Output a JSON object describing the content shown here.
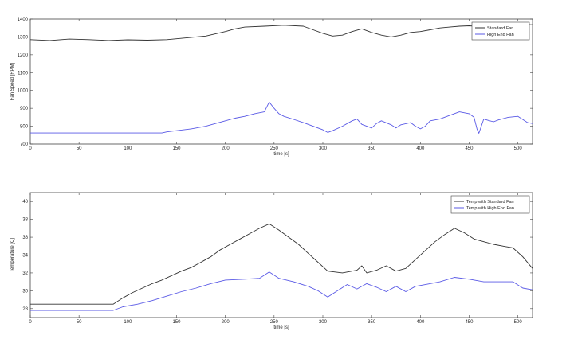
{
  "chart_data": [
    {
      "type": "line",
      "xlabel": "time [s]",
      "ylabel": "Fan Speed [RPM]",
      "xlim": [
        0,
        515
      ],
      "ylim": [
        700,
        1400
      ],
      "xticks": [
        0,
        50,
        100,
        150,
        200,
        250,
        300,
        350,
        400,
        450,
        500
      ],
      "yticks": [
        700,
        800,
        900,
        1000,
        1100,
        1200,
        1300,
        1400
      ],
      "xtick_labels": [
        "0",
        "50",
        "100",
        "150",
        "200",
        "250",
        "300",
        "350",
        "400",
        "450",
        "500"
      ],
      "ytick_labels": [
        "700",
        "800",
        "900",
        "1000",
        "1100",
        "1200",
        "1300",
        "1400"
      ],
      "legend_position": "top-right",
      "series": [
        {
          "name": "Standard Fan",
          "color": "#333333",
          "points": [
            [
              0,
              1285
            ],
            [
              20,
              1280
            ],
            [
              40,
              1288
            ],
            [
              60,
              1285
            ],
            [
              80,
              1280
            ],
            [
              100,
              1284
            ],
            [
              120,
              1282
            ],
            [
              140,
              1285
            ],
            [
              160,
              1295
            ],
            [
              180,
              1305
            ],
            [
              200,
              1330
            ],
            [
              210,
              1345
            ],
            [
              220,
              1355
            ],
            [
              240,
              1360
            ],
            [
              260,
              1365
            ],
            [
              280,
              1360
            ],
            [
              290,
              1340
            ],
            [
              300,
              1320
            ],
            [
              310,
              1305
            ],
            [
              320,
              1310
            ],
            [
              330,
              1330
            ],
            [
              340,
              1345
            ],
            [
              350,
              1325
            ],
            [
              360,
              1310
            ],
            [
              370,
              1300
            ],
            [
              380,
              1310
            ],
            [
              390,
              1325
            ],
            [
              400,
              1330
            ],
            [
              410,
              1340
            ],
            [
              420,
              1350
            ],
            [
              430,
              1355
            ],
            [
              440,
              1360
            ],
            [
              450,
              1362
            ],
            [
              460,
              1358
            ],
            [
              470,
              1360
            ],
            [
              480,
              1365
            ],
            [
              490,
              1362
            ],
            [
              500,
              1370
            ],
            [
              515,
              1368
            ]
          ]
        },
        {
          "name": "High End Fan",
          "color": "#5a5ae6",
          "points": [
            [
              0,
              762
            ],
            [
              135,
              762
            ],
            [
              140,
              768
            ],
            [
              150,
              775
            ],
            [
              165,
              785
            ],
            [
              180,
              800
            ],
            [
              190,
              815
            ],
            [
              200,
              830
            ],
            [
              210,
              845
            ],
            [
              220,
              855
            ],
            [
              230,
              870
            ],
            [
              240,
              880
            ],
            [
              245,
              935
            ],
            [
              250,
              900
            ],
            [
              255,
              870
            ],
            [
              260,
              855
            ],
            [
              270,
              838
            ],
            [
              280,
              820
            ],
            [
              290,
              800
            ],
            [
              300,
              780
            ],
            [
              305,
              765
            ],
            [
              310,
              775
            ],
            [
              320,
              800
            ],
            [
              330,
              830
            ],
            [
              335,
              840
            ],
            [
              340,
              810
            ],
            [
              350,
              790
            ],
            [
              355,
              815
            ],
            [
              360,
              830
            ],
            [
              370,
              808
            ],
            [
              375,
              790
            ],
            [
              380,
              808
            ],
            [
              390,
              820
            ],
            [
              395,
              800
            ],
            [
              400,
              785
            ],
            [
              405,
              800
            ],
            [
              410,
              830
            ],
            [
              420,
              840
            ],
            [
              430,
              860
            ],
            [
              440,
              880
            ],
            [
              450,
              870
            ],
            [
              455,
              850
            ],
            [
              458,
              785
            ],
            [
              460,
              760
            ],
            [
              465,
              840
            ],
            [
              470,
              832
            ],
            [
              475,
              825
            ],
            [
              480,
              835
            ],
            [
              490,
              850
            ],
            [
              500,
              855
            ],
            [
              510,
              820
            ],
            [
              515,
              815
            ]
          ]
        }
      ]
    },
    {
      "type": "line",
      "xlabel": "time [s]",
      "ylabel": "Temperature [C]",
      "xlim": [
        0,
        515
      ],
      "ylim": [
        27,
        41
      ],
      "xticks": [
        0,
        50,
        100,
        150,
        200,
        250,
        300,
        350,
        400,
        450,
        500
      ],
      "yticks": [
        28,
        30,
        32,
        34,
        36,
        38,
        40
      ],
      "xtick_labels": [
        "0",
        "50",
        "100",
        "150",
        "200",
        "250",
        "300",
        "350",
        "400",
        "450",
        "500"
      ],
      "ytick_labels": [
        "28",
        "30",
        "32",
        "34",
        "36",
        "38",
        "40"
      ],
      "legend_position": "top-right",
      "series": [
        {
          "name": "Temp with Standard Fan",
          "color": "#333333",
          "points": [
            [
              0,
              28.5
            ],
            [
              85,
              28.5
            ],
            [
              95,
              29.2
            ],
            [
              105,
              29.8
            ],
            [
              115,
              30.3
            ],
            [
              125,
              30.8
            ],
            [
              135,
              31.2
            ],
            [
              145,
              31.7
            ],
            [
              155,
              32.2
            ],
            [
              165,
              32.6
            ],
            [
              175,
              33.2
            ],
            [
              185,
              33.8
            ],
            [
              195,
              34.6
            ],
            [
              205,
              35.2
            ],
            [
              215,
              35.8
            ],
            [
              225,
              36.4
            ],
            [
              235,
              37.0
            ],
            [
              245,
              37.5
            ],
            [
              255,
              36.8
            ],
            [
              265,
              36.0
            ],
            [
              275,
              35.2
            ],
            [
              285,
              34.2
            ],
            [
              295,
              33.2
            ],
            [
              305,
              32.2
            ],
            [
              320,
              32.0
            ],
            [
              335,
              32.3
            ],
            [
              340,
              32.8
            ],
            [
              345,
              32.0
            ],
            [
              355,
              32.3
            ],
            [
              365,
              32.8
            ],
            [
              375,
              32.2
            ],
            [
              385,
              32.5
            ],
            [
              395,
              33.5
            ],
            [
              405,
              34.5
            ],
            [
              415,
              35.5
            ],
            [
              425,
              36.3
            ],
            [
              435,
              37.0
            ],
            [
              445,
              36.5
            ],
            [
              455,
              35.8
            ],
            [
              465,
              35.5
            ],
            [
              475,
              35.2
            ],
            [
              485,
              35.0
            ],
            [
              495,
              34.8
            ],
            [
              505,
              33.8
            ],
            [
              515,
              32.5
            ]
          ]
        },
        {
          "name": "Temp with High End Fan",
          "color": "#5a5ae6",
          "points": [
            [
              0,
              27.8
            ],
            [
              85,
              27.8
            ],
            [
              95,
              28.2
            ],
            [
              110,
              28.5
            ],
            [
              125,
              28.9
            ],
            [
              140,
              29.4
            ],
            [
              155,
              29.9
            ],
            [
              170,
              30.3
            ],
            [
              185,
              30.8
            ],
            [
              200,
              31.2
            ],
            [
              220,
              31.3
            ],
            [
              235,
              31.4
            ],
            [
              245,
              32.1
            ],
            [
              255,
              31.4
            ],
            [
              270,
              31.0
            ],
            [
              285,
              30.5
            ],
            [
              295,
              30.0
            ],
            [
              305,
              29.3
            ],
            [
              315,
              30.0
            ],
            [
              325,
              30.7
            ],
            [
              335,
              30.2
            ],
            [
              345,
              30.8
            ],
            [
              355,
              30.4
            ],
            [
              365,
              29.9
            ],
            [
              375,
              30.5
            ],
            [
              385,
              29.9
            ],
            [
              395,
              30.5
            ],
            [
              410,
              30.8
            ],
            [
              420,
              31.0
            ],
            [
              435,
              31.5
            ],
            [
              450,
              31.3
            ],
            [
              465,
              31.0
            ],
            [
              480,
              31.0
            ],
            [
              495,
              31.0
            ],
            [
              505,
              30.3
            ],
            [
              515,
              30.1
            ]
          ]
        }
      ]
    }
  ]
}
